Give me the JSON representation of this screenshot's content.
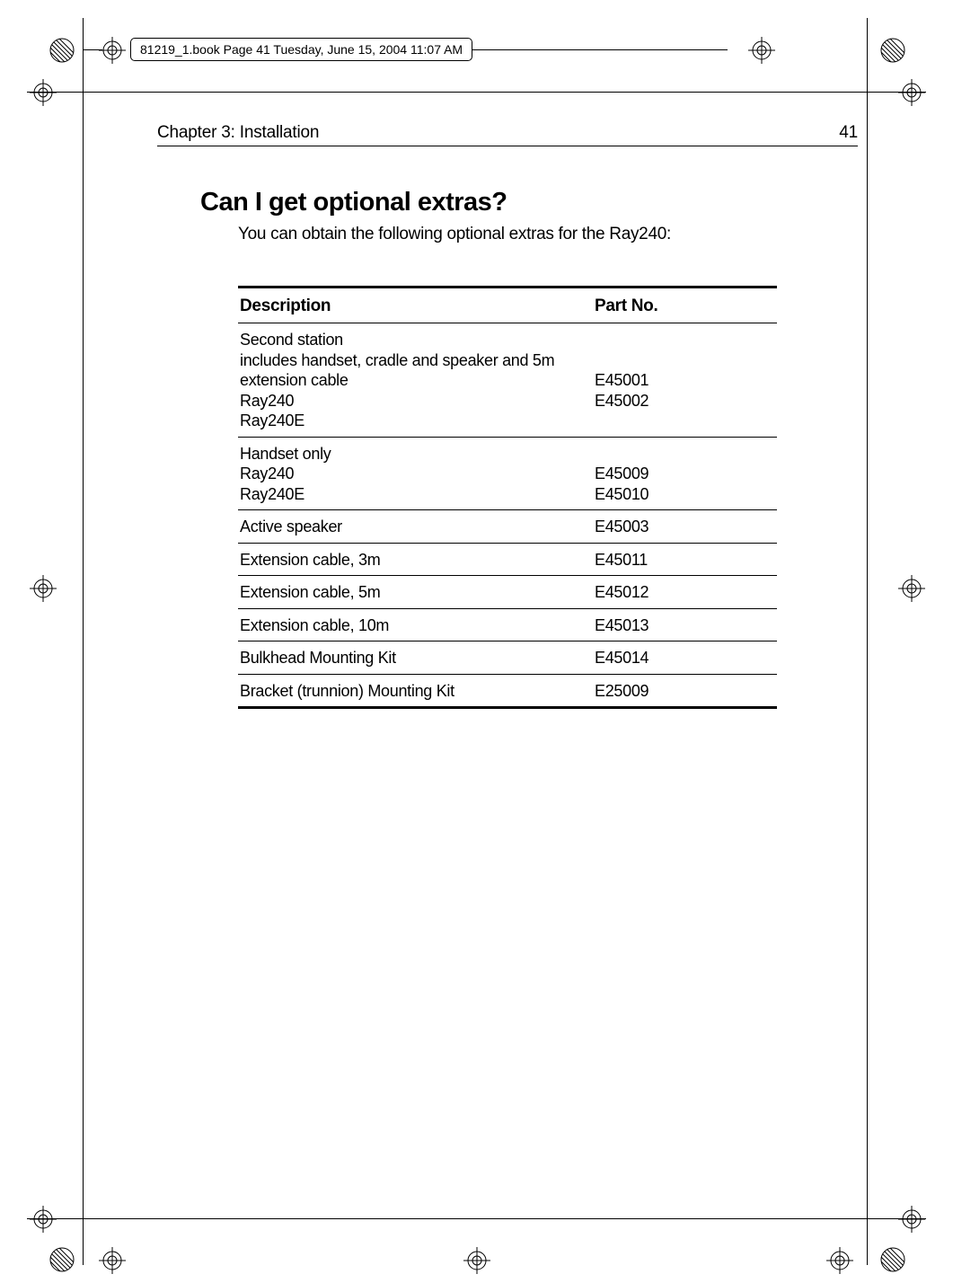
{
  "header": {
    "text": "81219_1.book  Page 41  Tuesday, June 15, 2004  11:07 AM"
  },
  "chapter": {
    "label": "Chapter 3: Installation",
    "page_number": "41"
  },
  "heading": "Can I get optional extras?",
  "intro": "You can obtain the following optional extras for the Ray240:",
  "table": {
    "columns": [
      "Description",
      "Part No."
    ],
    "rows": [
      {
        "desc": "Second station\nincludes handset, cradle and speaker and 5m extension cable\nRay240\nRay240E",
        "part": "\n\nE45001\nE45002"
      },
      {
        "desc": "Handset only\nRay240\nRay240E",
        "part": "\nE45009\nE45010"
      },
      {
        "desc": "Active speaker",
        "part": "E45003"
      },
      {
        "desc": "Extension cable, 3m",
        "part": "E45011"
      },
      {
        "desc": "Extension cable, 5m",
        "part": "E45012"
      },
      {
        "desc": "Extension cable, 10m",
        "part": "E45013"
      },
      {
        "desc": "Bulkhead Mounting Kit",
        "part": "E45014"
      },
      {
        "desc": "Bracket (trunnion) Mounting Kit",
        "part": "E25009"
      }
    ]
  },
  "colors": {
    "text": "#000000",
    "background": "#ffffff",
    "rule": "#000000"
  },
  "fonts": {
    "body_size_pt": 14,
    "heading_size_pt": 22,
    "heading_weight": 800
  }
}
